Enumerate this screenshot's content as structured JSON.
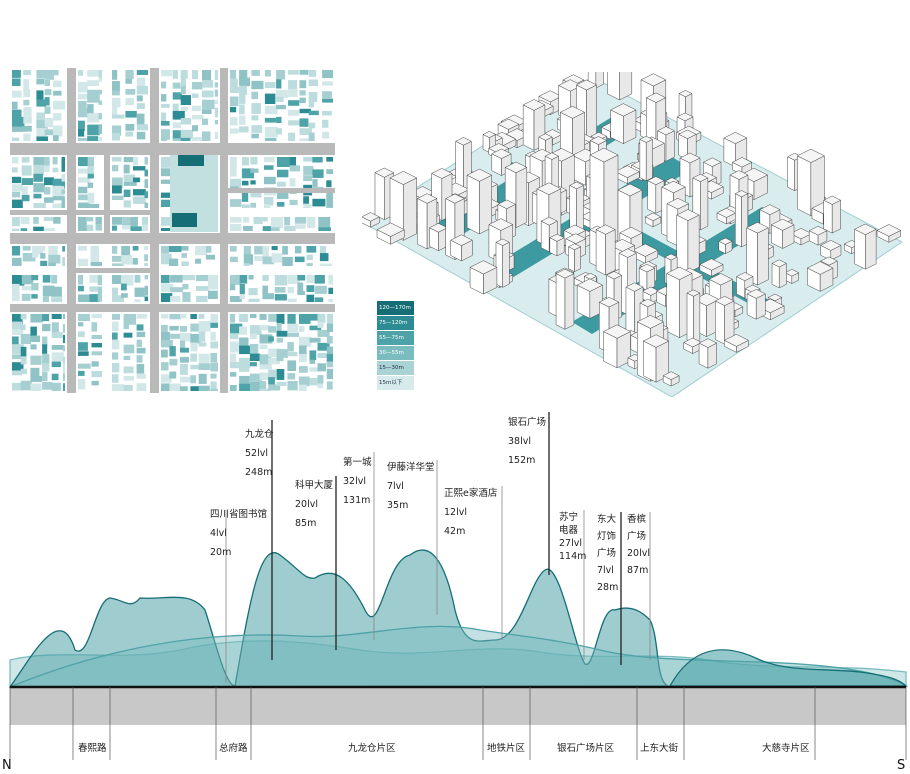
{
  "legend": {
    "title": "",
    "items": [
      {
        "label": "120—170m",
        "color": "#156e76"
      },
      {
        "label": "75—120m",
        "color": "#2d8c93"
      },
      {
        "label": "55—75m",
        "color": "#4ea3a8"
      },
      {
        "label": "30—55m",
        "color": "#7bbcbf"
      },
      {
        "label": "15—30m",
        "color": "#a9d3d5"
      },
      {
        "label": "15m以下",
        "color": "#d7ebec"
      }
    ]
  },
  "buildings": [
    {
      "name": "四川省图书馆",
      "floors": "4lvl",
      "height": "20m"
    },
    {
      "name": "九龙仓",
      "floors": "52lvl",
      "height": "248m"
    },
    {
      "name": "科甲大厦",
      "floors": "20lvl",
      "height": "85m"
    },
    {
      "name": "第一城",
      "floors": "32lvl",
      "height": "131m"
    },
    {
      "name": "伊藤洋华堂",
      "floors": "7lvl",
      "height": "35m"
    },
    {
      "name": "正熙e家酒店",
      "floors": "12lvl",
      "height": "42m"
    },
    {
      "name": "银石广场",
      "floors": "38lvl",
      "height": "152m"
    },
    {
      "name_lines": [
        "苏宁",
        "电器"
      ],
      "floors": "27lvl",
      "height": "114m"
    },
    {
      "name_lines": [
        "东大",
        "灯饰",
        "广场"
      ],
      "floors": "7lvl",
      "height": "28m"
    },
    {
      "name_lines": [
        "香槟",
        "广场"
      ],
      "floors": "20lvl",
      "height": "87m"
    }
  ],
  "districts": [
    "春熙路",
    "总府路",
    "九龙仓片区",
    "地铁片区",
    "银石广场片区",
    "上东大街",
    "大慈寺片区"
  ],
  "axis": {
    "start": "N",
    "end": "S"
  },
  "colors": {
    "teal_dark": "#156e76",
    "teal_mid": "#4ea3a8",
    "teal_light": "#a9d3d5",
    "road": "#bdbdbd",
    "ground": "#c8c8c8"
  }
}
